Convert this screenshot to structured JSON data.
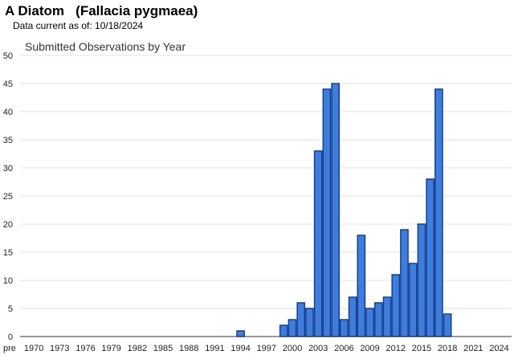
{
  "header": {
    "title": "A Diatom   (Fallacia pygmaea)",
    "data_current": "Data current as of: 10/18/2024"
  },
  "chart_data": {
    "type": "bar",
    "title": "Submitted Observations by Year",
    "xlabel": "",
    "ylabel": "",
    "ylim": [
      0,
      50
    ],
    "yticks": [
      0,
      5,
      10,
      15,
      20,
      25,
      30,
      35,
      40,
      45,
      50
    ],
    "grid": true,
    "legend": "none",
    "bar_color": "#3f7ddd",
    "bar_edge_color": "#163f90",
    "categories": [
      "pre",
      "1970",
      "1971",
      "1972",
      "1973",
      "1974",
      "1975",
      "1976",
      "1977",
      "1978",
      "1979",
      "1980",
      "1981",
      "1982",
      "1983",
      "1984",
      "1985",
      "1986",
      "1987",
      "1988",
      "1989",
      "1990",
      "1991",
      "1992",
      "1993",
      "1994",
      "1995",
      "1996",
      "1997",
      "1998",
      "1999",
      "2000",
      "2001",
      "2002",
      "2003",
      "2004",
      "2005",
      "2006",
      "2007",
      "2008",
      "2009",
      "2010",
      "2011",
      "2012",
      "2013",
      "2014",
      "2015",
      "2016",
      "2017",
      "2018",
      "2019",
      "2020",
      "2021",
      "2022",
      "2023",
      "2024"
    ],
    "tick_labels": [
      "pre",
      "1970",
      "1973",
      "1976",
      "1979",
      "1982",
      "1985",
      "1988",
      "1991",
      "1994",
      "1997",
      "2000",
      "2003",
      "2006",
      "2009",
      "2012",
      "2015",
      "2018",
      "2021",
      "2024"
    ],
    "values": [
      0,
      0,
      0,
      0,
      0,
      0,
      0,
      0,
      0,
      0,
      0,
      0,
      0,
      0,
      0,
      0,
      0,
      0,
      0,
      0,
      0,
      0,
      0,
      0,
      0,
      1,
      0,
      0,
      0,
      0,
      2,
      3,
      6,
      5,
      33,
      44,
      45,
      3,
      7,
      18,
      5,
      6,
      7,
      11,
      19,
      13,
      20,
      28,
      44,
      4,
      0,
      0,
      0,
      0,
      0,
      0
    ]
  }
}
